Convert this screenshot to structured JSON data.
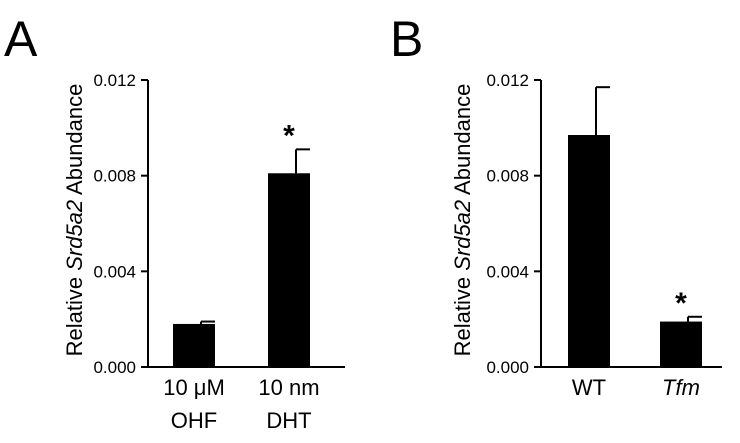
{
  "chart_data": [
    {
      "type": "bar",
      "panel_label": "A",
      "ylabel_parts": [
        "Relative ",
        "Srd5a2",
        " Abundance"
      ],
      "ylim": [
        0,
        0.012
      ],
      "yticks": [
        "0.000",
        "0.004",
        "0.008",
        "0.012"
      ],
      "categories": [
        {
          "line1": "10 μM",
          "line2": "OHF",
          "italic": false
        },
        {
          "line1": "10 nm",
          "line2": "DHT",
          "italic": false
        }
      ],
      "values": [
        0.0018,
        0.0081
      ],
      "errors": [
        0.0001,
        0.001
      ],
      "significance": [
        "",
        "*"
      ],
      "bar_color": "#000000"
    },
    {
      "type": "bar",
      "panel_label": "B",
      "ylabel_parts": [
        "Relative ",
        "Srd5a2",
        " Abundance"
      ],
      "ylim": [
        0,
        0.012
      ],
      "yticks": [
        "0.000",
        "0.004",
        "0.008",
        "0.012"
      ],
      "categories": [
        {
          "line1": "WT",
          "line2": "",
          "italic": false
        },
        {
          "line1": "Tfm",
          "line2": "",
          "italic": true
        }
      ],
      "values": [
        0.0097,
        0.0019
      ],
      "errors": [
        0.002,
        0.0002
      ],
      "significance": [
        "",
        "*"
      ],
      "bar_color": "#000000"
    }
  ]
}
